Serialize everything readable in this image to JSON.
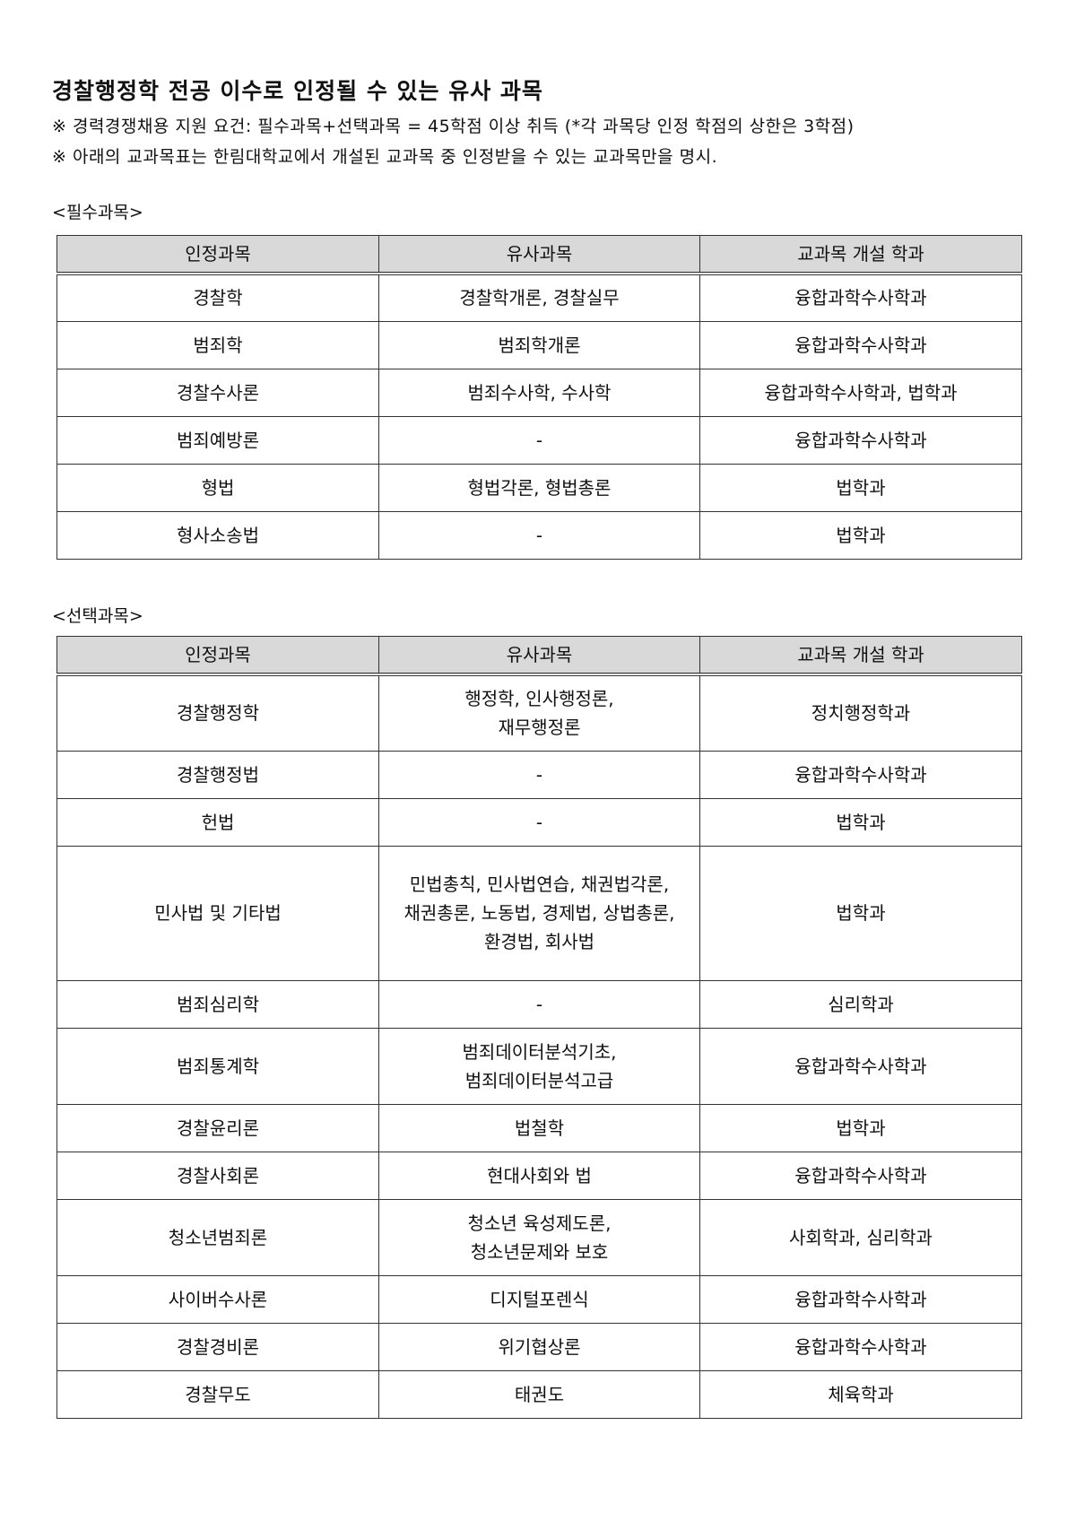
{
  "title": "경찰행정학 전공 이수로 인정될 수 있는 유사 과목",
  "notes": [
    "※ 경력경쟁채용 지원 요건: 필수과목+선택과목 = 45학점 이상 취득 (*각 과목당 인정 학점의 상한은 3학점)",
    "※ 아래의 교과목표는 한림대학교에서 개설된 교과목 중 인정받을 수 있는 교과목만을 명시."
  ],
  "headers": [
    "인정과목",
    "유사과목",
    "교과목 개설 학과"
  ],
  "required": {
    "label": "<필수과목>",
    "rows": [
      [
        "경찰학",
        "경찰학개론, 경찰실무",
        "융합과학수사학과"
      ],
      [
        "범죄학",
        "범죄학개론",
        "융합과학수사학과"
      ],
      [
        "경찰수사론",
        "범죄수사학, 수사학",
        "융합과학수사학과, 법학과"
      ],
      [
        "범죄예방론",
        "-",
        "융합과학수사학과"
      ],
      [
        "형법",
        "형법각론, 형법총론",
        "법학과"
      ],
      [
        "형사소송법",
        "-",
        "법학과"
      ]
    ]
  },
  "elective": {
    "label": "<선택과목>",
    "rows": [
      [
        "경찰행정학",
        "행정학, 인사행정론,\n재무행정론",
        "정치행정학과"
      ],
      [
        "경찰행정법",
        "-",
        "융합과학수사학과"
      ],
      [
        "헌법",
        "-",
        "법학과"
      ],
      [
        "민사법 및 기타법",
        "민법총칙, 민사법연습, 채권법각론,\n채권총론, 노동법, 경제법, 상법총론,\n환경법, 회사법",
        "법학과"
      ],
      [
        "범죄심리학",
        "-",
        "심리학과"
      ],
      [
        "범죄통계학",
        "범죄데이터분석기초,\n범죄데이터분석고급",
        "융합과학수사학과"
      ],
      [
        "경찰윤리론",
        "법철학",
        "법학과"
      ],
      [
        "경찰사회론",
        "현대사회와 법",
        "융합과학수사학과"
      ],
      [
        "청소년범죄론",
        "청소년 육성제도론,\n청소년문제와 보호",
        "사회학과, 심리학과"
      ],
      [
        "사이버수사론",
        "디지털포렌식",
        "융합과학수사학과"
      ],
      [
        "경찰경비론",
        "위기협상론",
        "융합과학수사학과"
      ],
      [
        "경찰무도",
        "태권도",
        "체육학과"
      ]
    ]
  }
}
